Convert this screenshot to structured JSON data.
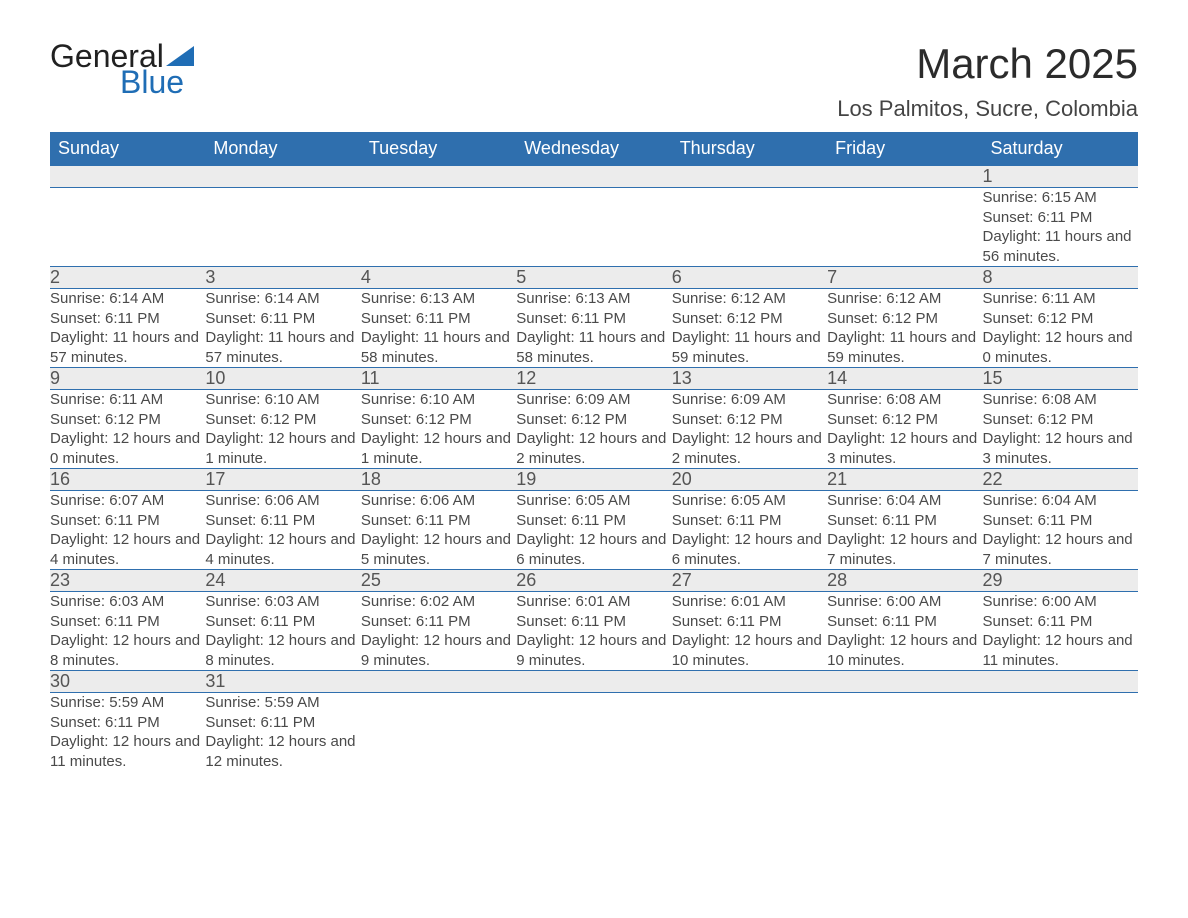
{
  "logo": {
    "word1": "General",
    "word2": "Blue"
  },
  "title": "March 2025",
  "subtitle": "Los Palmitos, Sucre, Colombia",
  "colors": {
    "header_bg": "#2f6fae",
    "header_text": "#ffffff",
    "daynum_bg": "#ececec",
    "body_text": "#4a4a4a",
    "logo_blue": "#1f6db5",
    "page_bg": "#ffffff"
  },
  "fonts": {
    "title_size_pt": 32,
    "subtitle_size_pt": 17,
    "header_size_pt": 14,
    "daynum_size_pt": 14,
    "detail_size_pt": 11
  },
  "day_headers": [
    "Sunday",
    "Monday",
    "Tuesday",
    "Wednesday",
    "Thursday",
    "Friday",
    "Saturday"
  ],
  "weeks": [
    {
      "nums": [
        "",
        "",
        "",
        "",
        "",
        "",
        "1"
      ],
      "details": [
        "",
        "",
        "",
        "",
        "",
        "",
        "Sunrise: 6:15 AM\nSunset: 6:11 PM\nDaylight: 11 hours and 56 minutes."
      ]
    },
    {
      "nums": [
        "2",
        "3",
        "4",
        "5",
        "6",
        "7",
        "8"
      ],
      "details": [
        "Sunrise: 6:14 AM\nSunset: 6:11 PM\nDaylight: 11 hours and 57 minutes.",
        "Sunrise: 6:14 AM\nSunset: 6:11 PM\nDaylight: 11 hours and 57 minutes.",
        "Sunrise: 6:13 AM\nSunset: 6:11 PM\nDaylight: 11 hours and 58 minutes.",
        "Sunrise: 6:13 AM\nSunset: 6:11 PM\nDaylight: 11 hours and 58 minutes.",
        "Sunrise: 6:12 AM\nSunset: 6:12 PM\nDaylight: 11 hours and 59 minutes.",
        "Sunrise: 6:12 AM\nSunset: 6:12 PM\nDaylight: 11 hours and 59 minutes.",
        "Sunrise: 6:11 AM\nSunset: 6:12 PM\nDaylight: 12 hours and 0 minutes."
      ]
    },
    {
      "nums": [
        "9",
        "10",
        "11",
        "12",
        "13",
        "14",
        "15"
      ],
      "details": [
        "Sunrise: 6:11 AM\nSunset: 6:12 PM\nDaylight: 12 hours and 0 minutes.",
        "Sunrise: 6:10 AM\nSunset: 6:12 PM\nDaylight: 12 hours and 1 minute.",
        "Sunrise: 6:10 AM\nSunset: 6:12 PM\nDaylight: 12 hours and 1 minute.",
        "Sunrise: 6:09 AM\nSunset: 6:12 PM\nDaylight: 12 hours and 2 minutes.",
        "Sunrise: 6:09 AM\nSunset: 6:12 PM\nDaylight: 12 hours and 2 minutes.",
        "Sunrise: 6:08 AM\nSunset: 6:12 PM\nDaylight: 12 hours and 3 minutes.",
        "Sunrise: 6:08 AM\nSunset: 6:12 PM\nDaylight: 12 hours and 3 minutes."
      ]
    },
    {
      "nums": [
        "16",
        "17",
        "18",
        "19",
        "20",
        "21",
        "22"
      ],
      "details": [
        "Sunrise: 6:07 AM\nSunset: 6:11 PM\nDaylight: 12 hours and 4 minutes.",
        "Sunrise: 6:06 AM\nSunset: 6:11 PM\nDaylight: 12 hours and 4 minutes.",
        "Sunrise: 6:06 AM\nSunset: 6:11 PM\nDaylight: 12 hours and 5 minutes.",
        "Sunrise: 6:05 AM\nSunset: 6:11 PM\nDaylight: 12 hours and 6 minutes.",
        "Sunrise: 6:05 AM\nSunset: 6:11 PM\nDaylight: 12 hours and 6 minutes.",
        "Sunrise: 6:04 AM\nSunset: 6:11 PM\nDaylight: 12 hours and 7 minutes.",
        "Sunrise: 6:04 AM\nSunset: 6:11 PM\nDaylight: 12 hours and 7 minutes."
      ]
    },
    {
      "nums": [
        "23",
        "24",
        "25",
        "26",
        "27",
        "28",
        "29"
      ],
      "details": [
        "Sunrise: 6:03 AM\nSunset: 6:11 PM\nDaylight: 12 hours and 8 minutes.",
        "Sunrise: 6:03 AM\nSunset: 6:11 PM\nDaylight: 12 hours and 8 minutes.",
        "Sunrise: 6:02 AM\nSunset: 6:11 PM\nDaylight: 12 hours and 9 minutes.",
        "Sunrise: 6:01 AM\nSunset: 6:11 PM\nDaylight: 12 hours and 9 minutes.",
        "Sunrise: 6:01 AM\nSunset: 6:11 PM\nDaylight: 12 hours and 10 minutes.",
        "Sunrise: 6:00 AM\nSunset: 6:11 PM\nDaylight: 12 hours and 10 minutes.",
        "Sunrise: 6:00 AM\nSunset: 6:11 PM\nDaylight: 12 hours and 11 minutes."
      ]
    },
    {
      "nums": [
        "30",
        "31",
        "",
        "",
        "",
        "",
        ""
      ],
      "details": [
        "Sunrise: 5:59 AM\nSunset: 6:11 PM\nDaylight: 12 hours and 11 minutes.",
        "Sunrise: 5:59 AM\nSunset: 6:11 PM\nDaylight: 12 hours and 12 minutes.",
        "",
        "",
        "",
        "",
        ""
      ]
    }
  ]
}
